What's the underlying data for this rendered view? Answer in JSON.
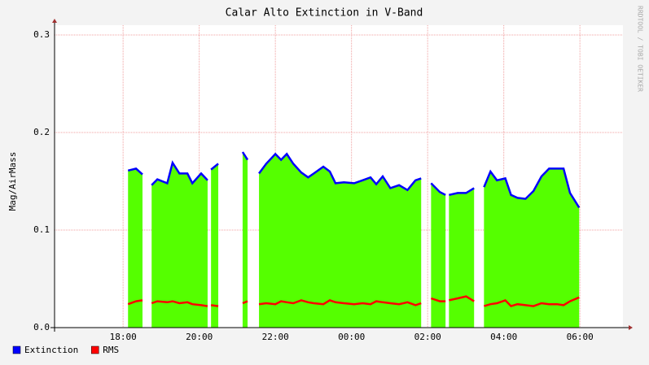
{
  "chart_data": {
    "type": "area",
    "title": "Calar Alto Extinction in V-Band",
    "ylabel": "Mag/AirMass",
    "watermark": "RRDTOOL / TOBI OETIKER",
    "x": [
      18.13,
      18.34,
      18.51,
      18.6,
      18.75,
      18.9,
      19.16,
      19.3,
      19.48,
      19.69,
      19.82,
      20.05,
      20.22,
      20.27,
      20.31,
      20.5,
      20.8,
      21.14,
      21.27,
      21.4,
      21.57,
      21.76,
      22,
      22.15,
      22.3,
      22.47,
      22.68,
      22.86,
      23.01,
      23.26,
      23.43,
      23.58,
      23.8,
      24.07,
      24.29,
      24.5,
      24.65,
      24.82,
      25.02,
      25.25,
      25.47,
      25.68,
      25.83,
      25.95,
      26.09,
      26.32,
      26.47,
      26.52,
      26.56,
      26.79,
      27.01,
      27.22,
      27.3,
      27.48,
      27.65,
      27.82,
      28.04,
      28.19,
      28.36,
      28.57,
      28.78,
      28.99,
      29.19,
      29.4,
      29.57,
      29.74,
      29.98
    ],
    "series": [
      {
        "name": "Extinction",
        "color": "#0000ff",
        "fill": "#55ff00",
        "values": [
          0.161,
          0.163,
          0.157,
          null,
          0.146,
          0.152,
          0.148,
          0.169,
          0.158,
          0.158,
          0.148,
          0.158,
          0.151,
          null,
          0.162,
          0.168,
          null,
          0.18,
          0.172,
          null,
          0.158,
          0.168,
          0.178,
          0.172,
          0.178,
          0.168,
          0.159,
          0.154,
          0.158,
          0.165,
          0.16,
          0.148,
          0.149,
          0.148,
          0.151,
          0.154,
          0.147,
          0.155,
          0.143,
          0.146,
          0.141,
          0.151,
          0.153,
          null,
          0.148,
          0.139,
          0.136,
          null,
          0.136,
          0.138,
          0.138,
          0.143,
          null,
          0.144,
          0.16,
          0.151,
          0.153,
          0.136,
          0.133,
          0.132,
          0.14,
          0.155,
          0.163,
          0.163,
          0.163,
          0.138,
          0.123
        ]
      },
      {
        "name": "RMS",
        "color": "#ff0000",
        "values": [
          0.024,
          0.027,
          0.028,
          null,
          0.025,
          0.027,
          0.026,
          0.027,
          0.025,
          0.026,
          0.024,
          0.023,
          0.022,
          null,
          0.023,
          0.022,
          null,
          0.025,
          0.027,
          null,
          0.024,
          0.025,
          0.024,
          0.027,
          0.026,
          0.025,
          0.028,
          0.026,
          0.025,
          0.024,
          0.028,
          0.026,
          0.025,
          0.024,
          0.025,
          0.024,
          0.027,
          0.026,
          0.025,
          0.024,
          0.026,
          0.023,
          0.025,
          null,
          0.03,
          0.027,
          0.027,
          null,
          0.028,
          0.03,
          0.032,
          0.027,
          null,
          0.022,
          0.024,
          0.025,
          0.028,
          0.022,
          0.024,
          0.023,
          0.022,
          0.025,
          0.024,
          0.024,
          0.023,
          0.027,
          0.031
        ]
      }
    ],
    "xlim": [
      16.2,
      31.13
    ],
    "xticks": [
      {
        "value": 18,
        "label": "18:00"
      },
      {
        "value": 20,
        "label": "20:00"
      },
      {
        "value": 22,
        "label": "22:00"
      },
      {
        "value": 24,
        "label": "00:00"
      },
      {
        "value": 26,
        "label": "02:00"
      },
      {
        "value": 28,
        "label": "04:00"
      },
      {
        "value": 30,
        "label": "06:00"
      }
    ],
    "ylim": [
      0,
      0.3
    ],
    "yticks": [
      {
        "value": 0,
        "label": "0.0"
      },
      0.1,
      0.2,
      0.3
    ],
    "grid": true
  }
}
